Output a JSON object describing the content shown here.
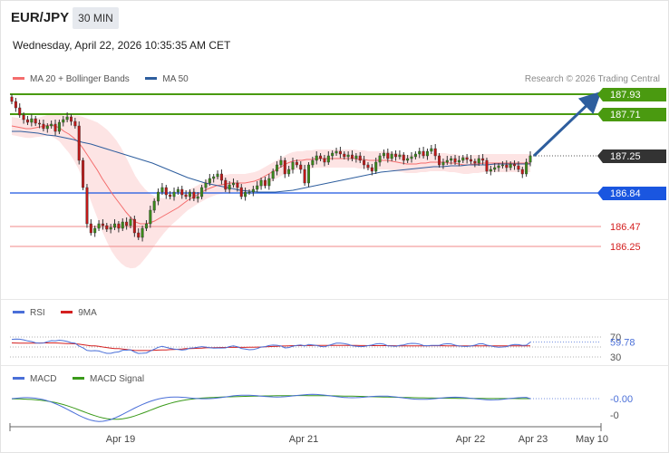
{
  "header": {
    "pair": "EUR/JPY",
    "timeframe": "30 MIN",
    "timestamp": "Wednesday, April 22, 2026 10:35:35 AM CET"
  },
  "legend": {
    "ma20_label": "MA 20 + Bollinger Bands",
    "ma50_label": "MA 50",
    "ma20_color": "#f46d6d",
    "ma50_color": "#2e5e9e"
  },
  "credit": "Research © 2026 Trading Central",
  "rsi_legend": {
    "rsi_label": "RSI",
    "ma_label": "9MA",
    "rsi_color": "#4a6fd8",
    "ma_color": "#d42020"
  },
  "macd_legend": {
    "macd_label": "MACD",
    "signal_label": "MACD Signal",
    "macd_color": "#4a6fd8",
    "signal_color": "#3a9a1a"
  },
  "chart_data": {
    "type": "candlestick",
    "y_range": [
      185.6,
      188.0
    ],
    "x_ticks": [
      "Apr 19",
      "Apr 21",
      "Apr 22",
      "Apr 23",
      "May 10"
    ],
    "price_levels": [
      {
        "value": 187.93,
        "label": "187.93",
        "kind": "target",
        "color": "#4a9a10"
      },
      {
        "value": 187.71,
        "label": "187.71",
        "kind": "target",
        "color": "#4a9a10"
      },
      {
        "value": 187.25,
        "label": "187.25",
        "kind": "last",
        "color": "#333333"
      },
      {
        "value": 186.84,
        "label": "186.84",
        "kind": "pivot",
        "color": "#1a56e0"
      },
      {
        "value": 186.47,
        "label": "186.47",
        "kind": "support",
        "color": "#d42020"
      },
      {
        "value": 186.25,
        "label": "186.25",
        "kind": "support",
        "color": "#d42020"
      }
    ],
    "forecast_arrow": {
      "from": 187.25,
      "to": 187.93,
      "color": "#2e5e9e"
    },
    "close": [
      187.85,
      187.78,
      187.7,
      187.65,
      187.62,
      187.66,
      187.61,
      187.6,
      187.55,
      187.58,
      187.6,
      187.52,
      187.62,
      187.65,
      187.68,
      187.63,
      187.58,
      187.2,
      186.9,
      186.5,
      186.4,
      186.45,
      186.5,
      186.48,
      186.44,
      186.46,
      186.5,
      186.45,
      186.52,
      186.48,
      186.55,
      186.4,
      186.35,
      186.45,
      186.5,
      186.65,
      186.75,
      186.85,
      186.9,
      186.82,
      186.8,
      186.85,
      186.88,
      186.82,
      186.8,
      186.85,
      186.78,
      186.8,
      186.9,
      186.95,
      187.0,
      187.02,
      187.05,
      186.98,
      186.88,
      186.93,
      186.95,
      186.9,
      186.8,
      186.85,
      186.85,
      186.88,
      186.92,
      186.98,
      186.92,
      187.0,
      187.08,
      187.15,
      187.2,
      187.05,
      187.1,
      187.18,
      187.15,
      187.1,
      186.95,
      187.15,
      187.2,
      187.25,
      187.22,
      187.18,
      187.25,
      187.28,
      187.3,
      187.27,
      187.24,
      187.26,
      187.22,
      187.25,
      187.2,
      187.15,
      187.12,
      187.08,
      187.18,
      187.25,
      187.28,
      187.22,
      187.27,
      187.24,
      187.26,
      187.2,
      187.22,
      187.24,
      187.27,
      187.3,
      187.25,
      187.3,
      187.33,
      187.25,
      187.15,
      187.18,
      187.2,
      187.22,
      187.18,
      187.2,
      187.23,
      187.21,
      187.19,
      187.17,
      187.22,
      187.2,
      187.08,
      187.1,
      187.12,
      187.14,
      187.15,
      187.12,
      187.16,
      187.14,
      187.1,
      187.05,
      187.18,
      187.25
    ],
    "ma20": [
      187.58,
      187.57,
      187.56,
      187.55,
      187.55,
      187.56,
      187.57,
      187.58,
      187.59,
      187.58,
      187.56,
      187.52,
      187.49,
      187.45,
      187.4,
      187.33,
      187.25,
      187.17,
      187.09,
      187.0,
      186.92,
      186.84,
      186.77,
      186.7,
      186.63,
      186.57,
      186.52,
      186.5,
      186.5,
      186.51,
      186.53,
      186.56,
      186.59,
      186.62,
      186.65,
      186.68,
      186.72,
      186.76,
      186.79,
      186.82,
      186.85,
      186.88,
      186.9,
      186.92,
      186.93,
      186.94,
      186.95,
      186.95,
      186.95,
      186.95,
      186.96,
      186.97,
      186.99,
      187.02,
      187.05,
      187.08,
      187.11,
      187.14,
      187.17,
      187.19,
      187.2,
      187.2,
      187.21,
      187.21,
      187.22,
      187.22,
      187.22,
      187.22,
      187.22,
      187.22,
      187.22,
      187.22,
      187.22,
      187.21,
      187.21,
      187.2,
      187.2,
      187.2,
      187.2,
      187.2,
      187.19,
      187.18,
      187.17,
      187.16,
      187.16,
      187.16,
      187.17,
      187.17,
      187.18,
      187.18,
      187.18,
      187.18,
      187.17,
      187.17,
      187.16,
      187.15,
      187.15,
      187.16,
      187.16,
      187.17,
      187.17,
      187.17,
      187.17,
      187.17,
      187.17,
      187.17,
      187.17,
      187.17,
      187.17,
      187.17
    ],
    "ma50": [
      187.52,
      187.52,
      187.51,
      187.5,
      187.48,
      187.47,
      187.45,
      187.43,
      187.4,
      187.38,
      187.35,
      187.32,
      187.29,
      187.26,
      187.23,
      187.2,
      187.17,
      187.13,
      187.09,
      187.05,
      187.01,
      186.98,
      186.95,
      186.93,
      186.91,
      186.89,
      186.87,
      186.86,
      186.85,
      186.85,
      186.85,
      186.86,
      186.87,
      186.89,
      186.91,
      186.93,
      186.95,
      186.97,
      186.99,
      187.01,
      187.03,
      187.05,
      187.07,
      187.08,
      187.09,
      187.1,
      187.11,
      187.12,
      187.13,
      187.13,
      187.14,
      187.14,
      187.15,
      187.15,
      187.15,
      187.16,
      187.16,
      187.16,
      187.16,
      187.16
    ],
    "rsi_axis_labels": [
      "70",
      "59.78",
      "30"
    ],
    "rsi_last": 59.78,
    "macd_axis_labels": [
      "-0.00",
      "-0"
    ],
    "macd_last": -0.0
  }
}
